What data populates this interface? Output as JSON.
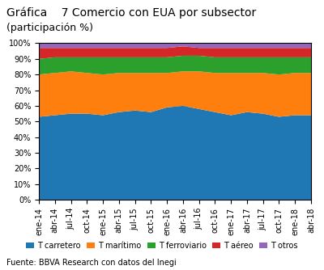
{
  "chart_data": {
    "type": "area",
    "stacked": true,
    "title": "Gráfica    7 Comercio con EUA por subsector",
    "subtitle": "(participación %)",
    "annotations": [
      "Fuente: BBVA Research con datos del Inegi"
    ],
    "categories": [
      "ene-14",
      "abr-14",
      "jul-14",
      "oct-14",
      "ene-15",
      "abr-15",
      "jul-15",
      "oct-15",
      "ene-16",
      "abr-16",
      "jul-16",
      "oct-16",
      "ene-17",
      "abr-17",
      "jul-17",
      "oct-17",
      "ene-18",
      "abr-18"
    ],
    "series": [
      {
        "name": "T carretero",
        "values": [
          53,
          54,
          55,
          55,
          54,
          56,
          57,
          56,
          59,
          60,
          58,
          56,
          54,
          56,
          55,
          53,
          54,
          54
        ]
      },
      {
        "name": "T marítimo",
        "values": [
          27,
          27,
          27,
          26,
          26,
          25,
          24,
          25,
          22,
          22,
          24,
          25,
          27,
          25,
          26,
          27,
          27,
          27
        ]
      },
      {
        "name": "T ferroviario",
        "values": [
          10,
          10,
          9,
          10,
          11,
          10,
          10,
          10,
          10,
          10,
          10,
          10,
          10,
          10,
          10,
          11,
          10,
          10
        ]
      },
      {
        "name": "T aéreo",
        "values": [
          7,
          6,
          6,
          6,
          6,
          6,
          6,
          6,
          6,
          6,
          5,
          6,
          6,
          6,
          6,
          6,
          6,
          6
        ]
      },
      {
        "name": "T otros",
        "values": [
          3,
          3,
          3,
          3,
          3,
          3,
          3,
          3,
          3,
          2,
          3,
          3,
          3,
          3,
          3,
          3,
          3,
          3
        ]
      }
    ],
    "ylim": [
      0,
      100
    ],
    "yticks": [
      {
        "value": 0,
        "label": "0%"
      },
      {
        "value": 10,
        "label": "10%"
      },
      {
        "value": 20,
        "label": "20%"
      },
      {
        "value": 30,
        "label": "30%"
      },
      {
        "value": 40,
        "label": "40%"
      },
      {
        "value": 50,
        "label": "50%"
      },
      {
        "value": 60,
        "label": "60%"
      },
      {
        "value": 70,
        "label": "70%"
      },
      {
        "value": 80,
        "label": "80%"
      },
      {
        "value": 90,
        "label": "90%"
      },
      {
        "value": 100,
        "label": "100%"
      }
    ],
    "grid": true,
    "legend": "lower center"
  }
}
